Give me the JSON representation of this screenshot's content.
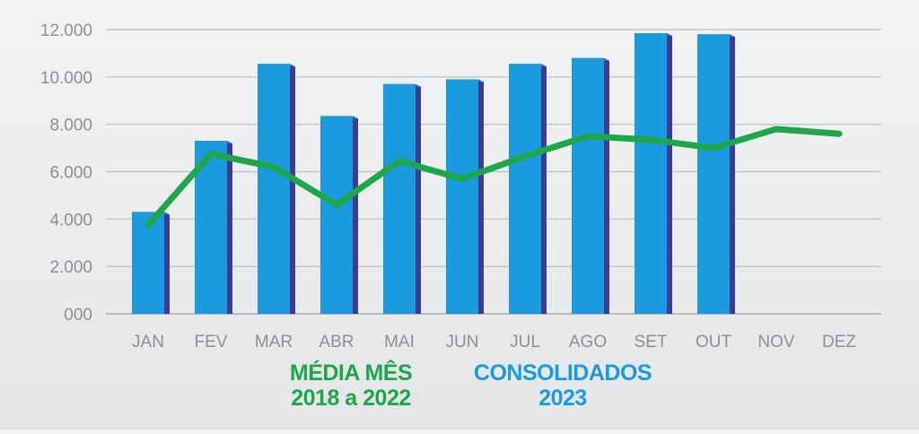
{
  "chart_data": {
    "type": "bar",
    "categories": [
      "JAN",
      "FEV",
      "MAR",
      "ABR",
      "MAI",
      "JUN",
      "JUL",
      "AGO",
      "SET",
      "OUT",
      "NOV",
      "DEZ"
    ],
    "y_tick_labels": [
      "000",
      "2.000",
      "4.000",
      "6.000",
      "8.000",
      "10.000",
      "12.000"
    ],
    "y_ticks": [
      0,
      2000,
      4000,
      6000,
      8000,
      10000,
      12000
    ],
    "ylim": [
      0,
      12000
    ],
    "grid": true,
    "legend_position": "bottom",
    "series": [
      {
        "name_line1": "CONSOLIDADOS",
        "name_line2": "2023",
        "type": "bar",
        "color": "#1a9be0",
        "values": [
          4300,
          7300,
          10550,
          8350,
          9700,
          9900,
          10550,
          10800,
          11850,
          11800,
          null,
          null
        ]
      },
      {
        "name_line1": "MÉDIA MÊS",
        "name_line2": "2018 a 2022",
        "type": "line",
        "color": "#1fa64a",
        "values": [
          3750,
          6750,
          6200,
          4600,
          6450,
          5700,
          6650,
          7500,
          7350,
          7000,
          7800,
          7600
        ]
      }
    ]
  }
}
